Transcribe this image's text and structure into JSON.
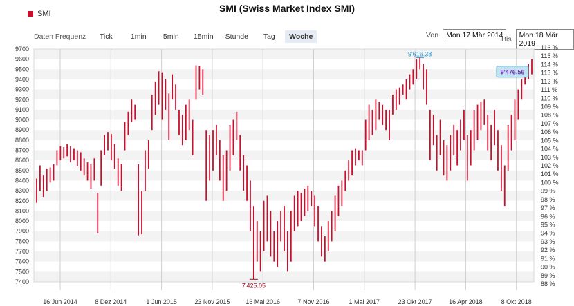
{
  "header": {
    "title": "SMI (Swiss Market Index SMI)"
  },
  "legend": {
    "label": "SMI",
    "color": "#c8102e"
  },
  "toolbar": {
    "frequency_label": "Daten Frequenz",
    "buttons": [
      "Tick",
      "1min",
      "5min",
      "15min",
      "Stunde",
      "Tag",
      "Woche"
    ],
    "active": "Woche"
  },
  "range": {
    "from_label": "Von",
    "from_value": "Mon 17 Mär 2014",
    "to_label": "Bis",
    "to_value": "Mon 18 Mär 2019"
  },
  "chart_data": {
    "type": "ohlc",
    "series_color": "#c8102e",
    "ylim": [
      7400,
      9700
    ],
    "y_ticks": [
      9700,
      9600,
      9500,
      9400,
      9300,
      9200,
      9100,
      9000,
      8900,
      8800,
      8700,
      8600,
      8500,
      8400,
      8300,
      8200,
      8100,
      8000,
      7900,
      7800,
      7700,
      7600,
      7500,
      7400
    ],
    "y2_ticks": [
      "116 %",
      "115 %",
      "114 %",
      "113 %",
      "112 %",
      "111 %",
      "110 %",
      "109 %",
      "108 %",
      "107 %",
      "106 %",
      "105 %",
      "104 %",
      "103 %",
      "102 %",
      "101 %",
      "100 %",
      "99 %",
      "98 %",
      "97 %",
      "96 %",
      "95 %",
      "94 %",
      "93 %",
      "92 %",
      "91 %",
      "90 %",
      "89 %",
      "88 %"
    ],
    "x_tick_labels": [
      "16 Jun 2014",
      "8 Dez 2014",
      "1 Jun 2015",
      "23 Nov 2015",
      "16 Mai 2016",
      "7 Nov 2016",
      "1 Mai 2017",
      "23 Okt 2017",
      "16 Apr 2018",
      "8 Okt 2018"
    ],
    "annotations": [
      {
        "text": "9'616.38",
        "value": 9616.38,
        "color": "#1e8fc8"
      },
      {
        "text": "7'425.05",
        "value": 7425.05,
        "color": "#a0101e"
      },
      {
        "text": "9'476.56",
        "value": 9476.56,
        "color": "#7a2fb5"
      }
    ],
    "weekly_ranges": [
      [
        8180,
        8420
      ],
      [
        8300,
        8550
      ],
      [
        8240,
        8450
      ],
      [
        8300,
        8520
      ],
      [
        8380,
        8530
      ],
      [
        8400,
        8560
      ],
      [
        8550,
        8700
      ],
      [
        8600,
        8740
      ],
      [
        8620,
        8730
      ],
      [
        8640,
        8760
      ],
      [
        8580,
        8740
      ],
      [
        8600,
        8720
      ],
      [
        8540,
        8700
      ],
      [
        8500,
        8680
      ],
      [
        8450,
        8620
      ],
      [
        8400,
        8580
      ],
      [
        8320,
        8560
      ],
      [
        8400,
        8620
      ],
      [
        7880,
        8280
      ],
      [
        8350,
        8700
      ],
      [
        8650,
        8850
      ],
      [
        8700,
        8880
      ],
      [
        8600,
        8860
      ],
      [
        8520,
        8760
      ],
      [
        8350,
        8620
      ],
      [
        8300,
        8560
      ],
      [
        8700,
        8980
      ],
      [
        8850,
        9080
      ],
      [
        8980,
        9200
      ],
      [
        9000,
        9150
      ],
      [
        7860,
        8560
      ],
      [
        7870,
        8300
      ],
      [
        8300,
        8700
      ],
      [
        8520,
        8800
      ],
      [
        8900,
        9250
      ],
      [
        9050,
        9380
      ],
      [
        9150,
        9480
      ],
      [
        9000,
        9470
      ],
      [
        9100,
        9400
      ],
      [
        8800,
        9260
      ],
      [
        9200,
        9450
      ],
      [
        9100,
        9350
      ],
      [
        8850,
        9100
      ],
      [
        8750,
        9050
      ],
      [
        8800,
        9150
      ],
      [
        8900,
        9200
      ],
      [
        8650,
        9000
      ],
      [
        9200,
        9540
      ],
      [
        9300,
        9530
      ],
      [
        9250,
        9500
      ],
      [
        8200,
        8900
      ],
      [
        8400,
        8850
      ],
      [
        8500,
        8900
      ],
      [
        8650,
        8950
      ],
      [
        8400,
        8800
      ],
      [
        8200,
        8650
      ],
      [
        8300,
        8700
      ],
      [
        8500,
        8950
      ],
      [
        8650,
        9000
      ],
      [
        8800,
        9080
      ],
      [
        8500,
        8850
      ],
      [
        8300,
        8650
      ],
      [
        8200,
        8550
      ],
      [
        7900,
        8400
      ],
      [
        7425,
        8150
      ],
      [
        7600,
        8000
      ],
      [
        7500,
        7900
      ],
      [
        7700,
        8200
      ],
      [
        7800,
        8250
      ],
      [
        7650,
        8100
      ],
      [
        7600,
        7900
      ],
      [
        7550,
        8000
      ],
      [
        7800,
        8100
      ],
      [
        7700,
        8150
      ],
      [
        7500,
        7900
      ],
      [
        7600,
        8100
      ],
      [
        7900,
        8250
      ],
      [
        7950,
        8300
      ],
      [
        8000,
        8280
      ],
      [
        8050,
        8320
      ],
      [
        8100,
        8350
      ],
      [
        8150,
        8300
      ],
      [
        7950,
        8250
      ],
      [
        7800,
        8150
      ],
      [
        7650,
        7950
      ],
      [
        7600,
        7850
      ],
      [
        7700,
        8000
      ],
      [
        7800,
        8100
      ],
      [
        7900,
        8250
      ],
      [
        8050,
        8350
      ],
      [
        8150,
        8400
      ],
      [
        8300,
        8500
      ],
      [
        8400,
        8600
      ],
      [
        8450,
        8700
      ],
      [
        8550,
        8720
      ],
      [
        8600,
        8700
      ],
      [
        8550,
        8700
      ],
      [
        8700,
        9000
      ],
      [
        8800,
        9150
      ],
      [
        8850,
        9100
      ],
      [
        8900,
        9200
      ],
      [
        9000,
        9180
      ],
      [
        8950,
        9150
      ],
      [
        8900,
        9100
      ],
      [
        8800,
        9100
      ],
      [
        9050,
        9250
      ],
      [
        9100,
        9300
      ],
      [
        9150,
        9320
      ],
      [
        9250,
        9350
      ],
      [
        9200,
        9400
      ],
      [
        9300,
        9450
      ],
      [
        9350,
        9500
      ],
      [
        9400,
        9600
      ],
      [
        9500,
        9616
      ],
      [
        9300,
        9550
      ],
      [
        9150,
        9500
      ],
      [
        8600,
        9100
      ],
      [
        8750,
        9050
      ],
      [
        8500,
        8850
      ],
      [
        8650,
        9000
      ],
      [
        8450,
        8800
      ],
      [
        8400,
        8750
      ],
      [
        8500,
        8850
      ],
      [
        8650,
        8950
      ],
      [
        8550,
        8900
      ],
      [
        8700,
        9000
      ],
      [
        8800,
        9100
      ],
      [
        8400,
        8850
      ],
      [
        8550,
        8900
      ],
      [
        8700,
        9100
      ],
      [
        8800,
        9150
      ],
      [
        8900,
        9180
      ],
      [
        8950,
        9200
      ],
      [
        8700,
        9050
      ],
      [
        8600,
        8950
      ],
      [
        8750,
        9100
      ],
      [
        8500,
        8900
      ],
      [
        8300,
        8750
      ],
      [
        8150,
        8550
      ],
      [
        8500,
        8950
      ],
      [
        8700,
        9050
      ],
      [
        8800,
        9200
      ],
      [
        9000,
        9300
      ],
      [
        9200,
        9400
      ],
      [
        9350,
        9500
      ],
      [
        9400,
        9550
      ],
      [
        9450,
        9600
      ]
    ]
  }
}
